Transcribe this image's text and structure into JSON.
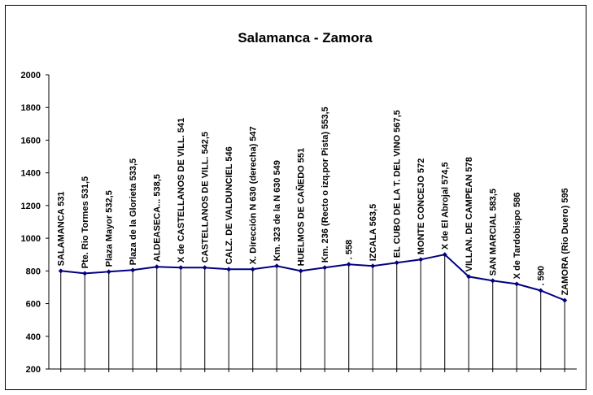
{
  "chart_data": {
    "type": "line",
    "title": "Salamanca - Zamora",
    "xlabel": "",
    "ylabel": "",
    "ylim": [
      200,
      2000
    ],
    "yticks": [
      200,
      400,
      600,
      800,
      1000,
      1200,
      1400,
      1600,
      1800,
      2000
    ],
    "grid": false,
    "legend": "none",
    "line_color": "#000080",
    "categories": [
      "SALAMANCA 531",
      "Pte. Rio Tormes 531,5",
      "Plaza Mayor 532,5",
      "Plaza de la Glorieta 533,5",
      "ALDEASECA... 538,5",
      "X de CASTELLANOS DE VILL. 541",
      "CASTELLANOS DE VILL. 542,5",
      "CALZ. DE VALDUNCIEL 546",
      "X. Dirección N 630 (derecha) 547",
      "Km. 323 de la N 630 549",
      "HUELMOS DE CAÑEDO 551",
      "Km. 236 (Recto o izq.por Pista) 553,5",
      ". 558",
      "IZCALA 563,5",
      "EL CUBO DE LA T. DEL VINO 567,5",
      "MONTE CONCEJO 572",
      "X de El Abrojal 574,5",
      "VILLAN. DE CAMPEAN 578",
      "SAN MARCIAL 583,5",
      "X de Tardobispo 586",
      ". 590",
      "ZAMORA (Rio Duero) 595"
    ],
    "values": [
      800,
      785,
      795,
      805,
      825,
      820,
      820,
      810,
      810,
      830,
      800,
      820,
      840,
      830,
      850,
      870,
      900,
      765,
      740,
      720,
      680,
      620
    ]
  }
}
